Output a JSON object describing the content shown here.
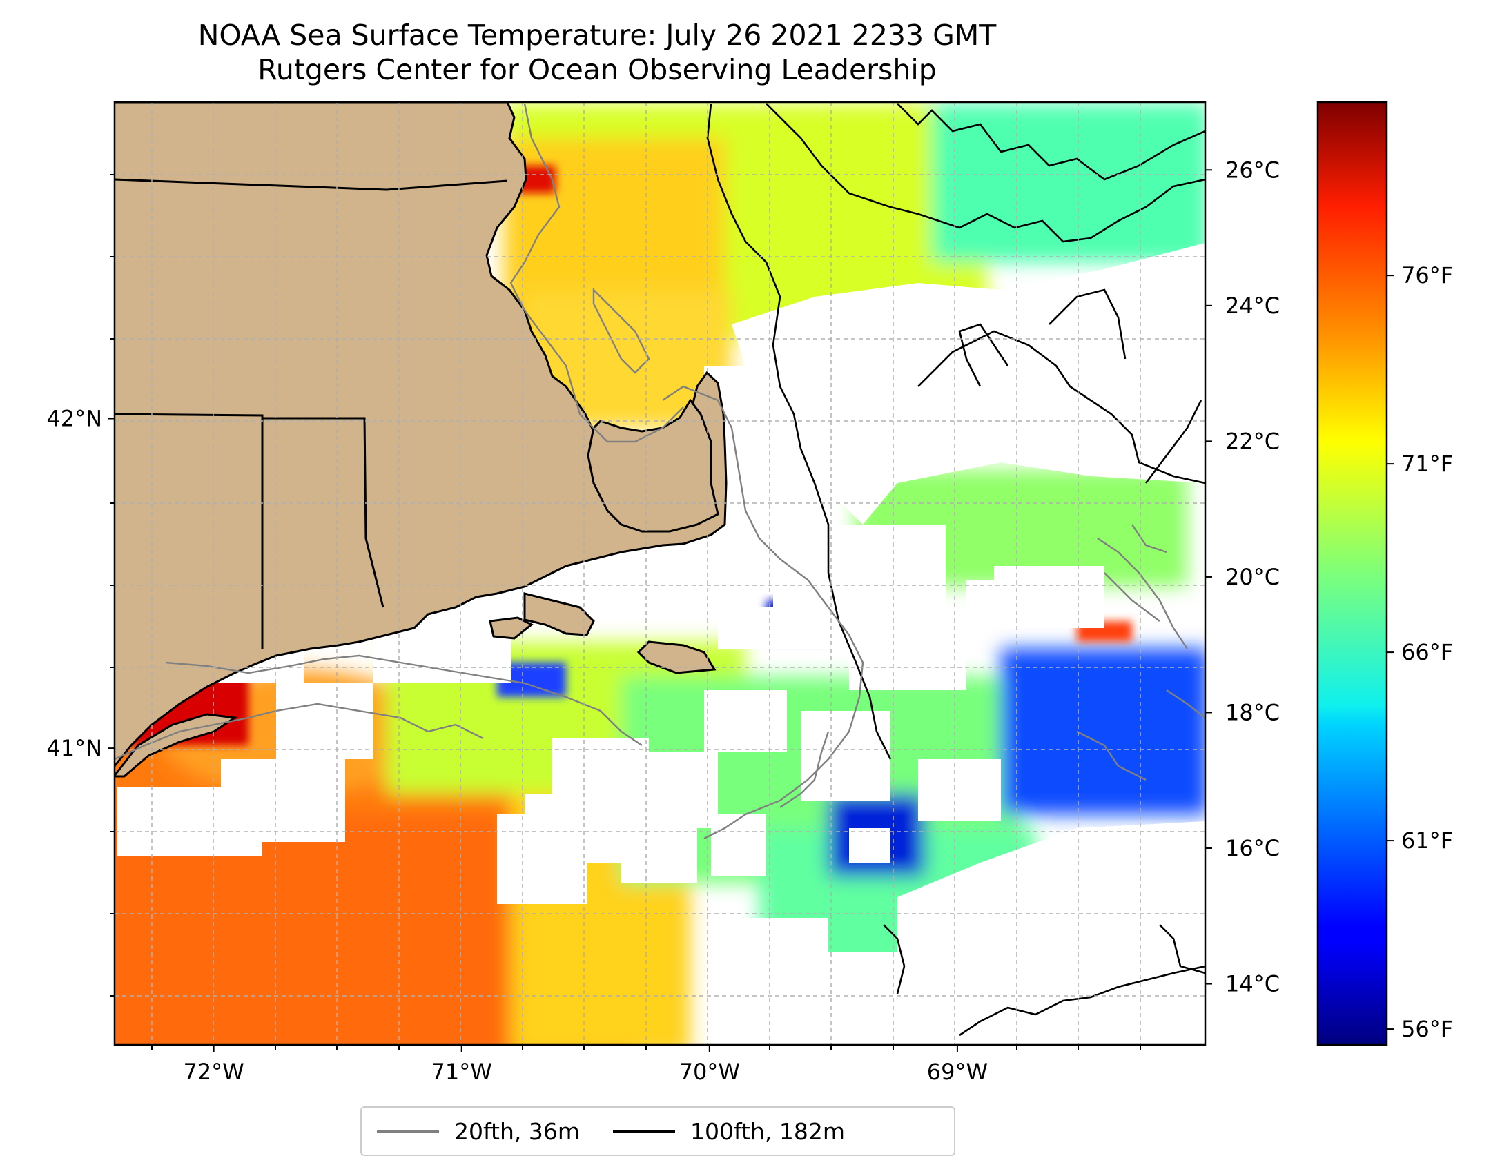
{
  "title": {
    "line1": "NOAA Sea Surface Temperature: July 26 2021 2233 GMT",
    "line2": "Rutgers Center for Ocean Observing Leadership"
  },
  "map": {
    "lon_range": [
      -72.4,
      -68.0
    ],
    "lat_range": [
      40.1,
      42.96
    ],
    "lon_ticks": [
      {
        "value": -72,
        "label": "72°W"
      },
      {
        "value": -71,
        "label": "71°W"
      },
      {
        "value": -70,
        "label": "70°W"
      },
      {
        "value": -69,
        "label": "69°W"
      }
    ],
    "lat_ticks": [
      {
        "value": 42,
        "label": "42°N"
      },
      {
        "value": 41,
        "label": "41°N"
      }
    ],
    "land_color": "#d2b48c",
    "no_data_color": "#ffffff"
  },
  "colorbar": {
    "celsius_range": [
      13.1,
      27.0
    ],
    "celsius_ticks": [
      {
        "value": 14,
        "label": "14°C"
      },
      {
        "value": 16,
        "label": "16°C"
      },
      {
        "value": 18,
        "label": "18°C"
      },
      {
        "value": 20,
        "label": "20°C"
      },
      {
        "value": 22,
        "label": "22°C"
      },
      {
        "value": 24,
        "label": "24°C"
      },
      {
        "value": 26,
        "label": "26°C"
      }
    ],
    "fahrenheit_ticks": [
      {
        "value": 56,
        "label": "56°F"
      },
      {
        "value": 61,
        "label": "61°F"
      },
      {
        "value": 66,
        "label": "66°F"
      },
      {
        "value": 71,
        "label": "71°F"
      },
      {
        "value": 76,
        "label": "76°F"
      }
    ],
    "colormap": "jet"
  },
  "legend": {
    "items": [
      {
        "label": "20fth, 36m",
        "color": "#808080"
      },
      {
        "label": "100fth, 182m",
        "color": "#000000"
      }
    ]
  }
}
